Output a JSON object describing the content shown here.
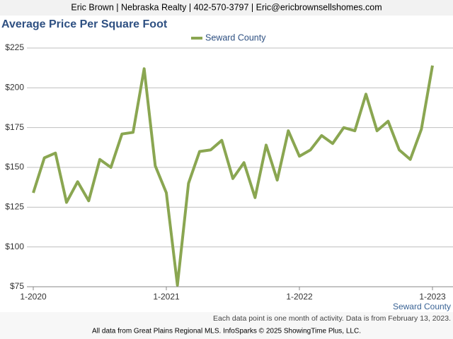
{
  "header": "Eric Brown | Nebraska Realty | 402-570-3797 | Eric@ericbrownsellshomes.com",
  "chart_data": {
    "type": "line",
    "title": "Average Price Per Square Foot",
    "categories": [
      "1-2020",
      null,
      null,
      null,
      null,
      null,
      null,
      null,
      null,
      null,
      null,
      null,
      "1-2021",
      null,
      null,
      null,
      null,
      null,
      null,
      null,
      null,
      null,
      null,
      null,
      "1-2022",
      null,
      null,
      null,
      null,
      null,
      null,
      null,
      null,
      null,
      null,
      null,
      "1-2023"
    ],
    "series": [
      {
        "name": "Seward County",
        "color": "#8aa651",
        "values": [
          134,
          156,
          159,
          128,
          141,
          129,
          155,
          150,
          171,
          172,
          212,
          151,
          134,
          76,
          140,
          160,
          161,
          167,
          143,
          153,
          131,
          164,
          142,
          173,
          157,
          161,
          170,
          165,
          175,
          173,
          196,
          173,
          179,
          161,
          155,
          174,
          214
        ]
      }
    ],
    "ylim": [
      75,
      225
    ],
    "yticks": [
      {
        "value": 75,
        "label": "$75"
      },
      {
        "value": 100,
        "label": "$100"
      },
      {
        "value": 125,
        "label": "$125"
      },
      {
        "value": 150,
        "label": "$150"
      },
      {
        "value": 175,
        "label": "$175"
      },
      {
        "value": 200,
        "label": "$200"
      },
      {
        "value": 225,
        "label": "$225"
      }
    ],
    "grid": true,
    "legend": "top",
    "x_axis_note": "Seward County",
    "footnote": "Each data point is one month of activity. Data is from February 13, 2023.",
    "source": "All data from Great Plains Regional MLS. InfoSparks © 2025 ShowingTime Plus, LLC."
  }
}
